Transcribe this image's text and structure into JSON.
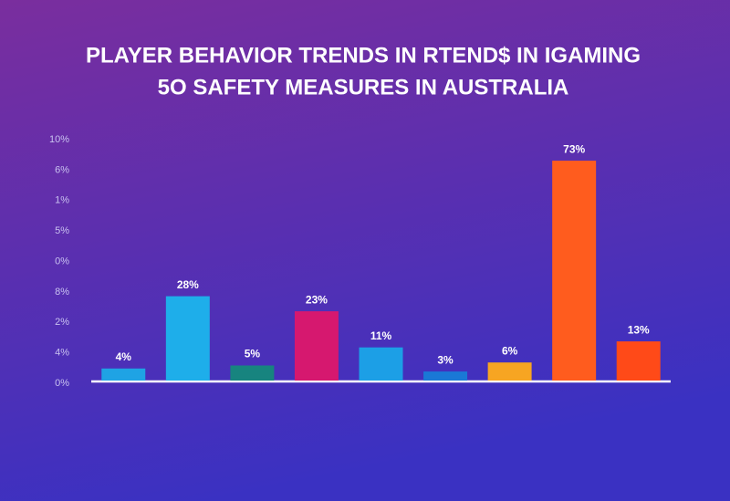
{
  "chart_data": {
    "type": "bar",
    "title": [
      "PLAYER BEHAVIOR TRENDS IN RTEND$ IN IGAMING",
      "5O SAFETY MEASURES IN AUSTRALIA"
    ],
    "y_axis_labels": [
      "10%",
      "6%",
      "1%",
      "5%",
      "0%",
      "8%",
      "2%",
      "4%",
      "0%"
    ],
    "categories": [
      null,
      null,
      null,
      null,
      null,
      null,
      null,
      null,
      null
    ],
    "values": [
      4,
      28,
      5,
      23,
      11,
      3,
      6,
      73,
      13
    ],
    "value_labels": [
      "4%",
      "28%",
      "5%",
      "23%",
      "11%",
      "3%",
      "6%",
      "73%",
      "13%"
    ],
    "colors": [
      "#1fa3e4",
      "#1eaeea",
      "#17847f",
      "#d6186f",
      "#1c9fe6",
      "#1a78d6",
      "#f7a522",
      "#ff5c1e",
      "#ff4a18"
    ],
    "ylim": [
      0,
      80
    ]
  }
}
